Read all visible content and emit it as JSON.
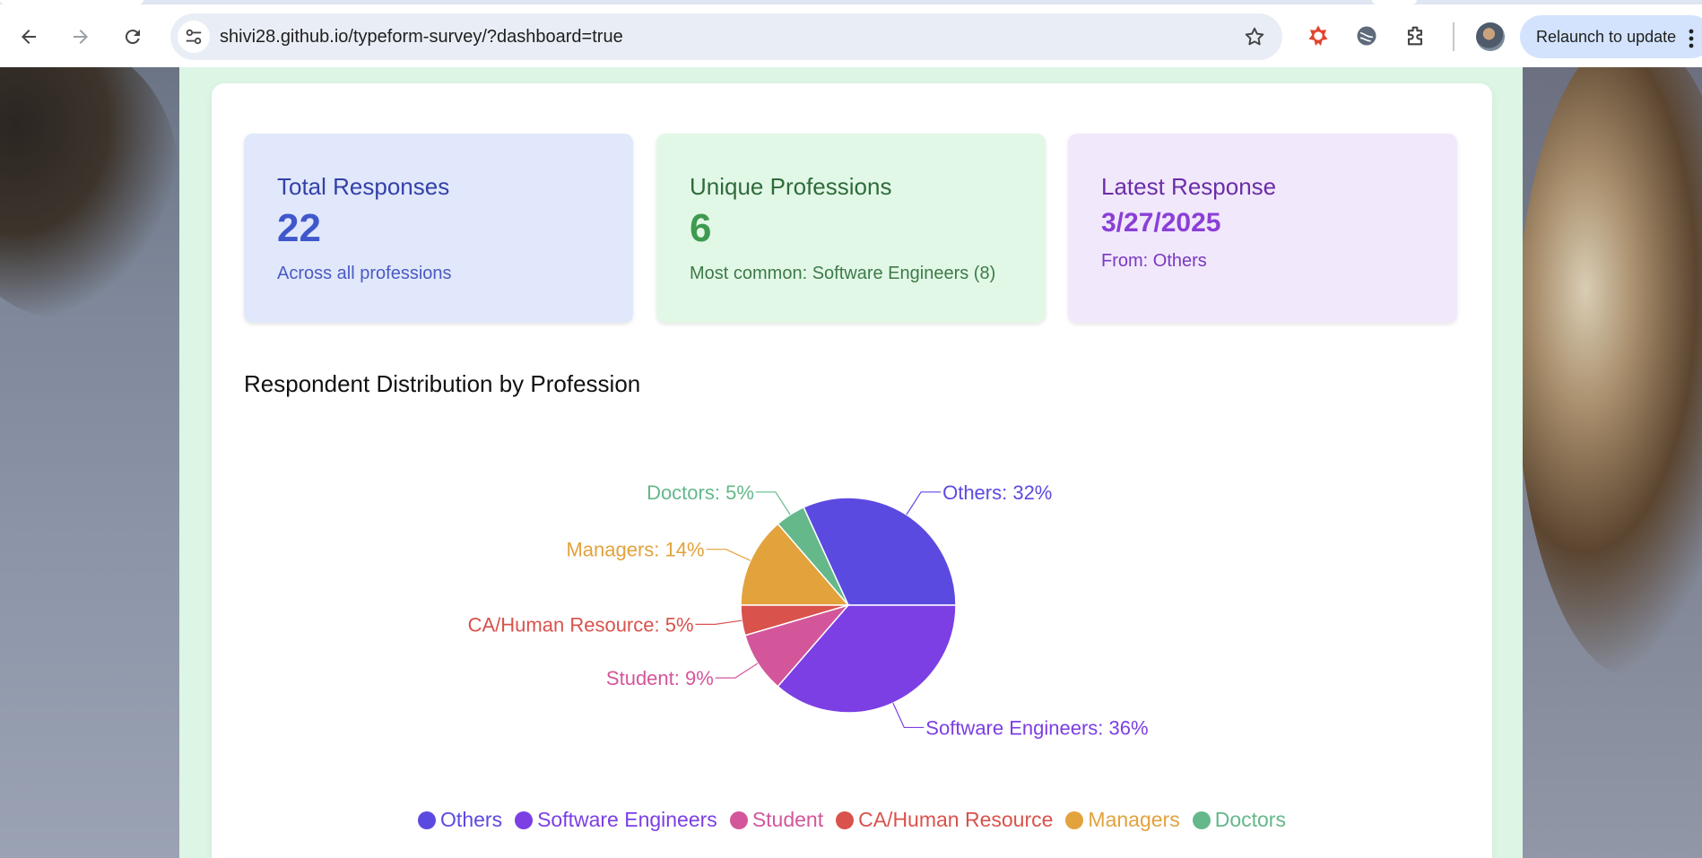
{
  "browser": {
    "url": "shivi28.github.io/typeform-survey/?dashboard=true",
    "relaunch_label": "Relaunch to update"
  },
  "stats": {
    "total": {
      "title": "Total Responses",
      "value": "22",
      "sub": "Across all professions"
    },
    "unique": {
      "title": "Unique Professions",
      "value": "6",
      "sub": "Most common: Software Engineers (8)"
    },
    "latest": {
      "title": "Latest Response",
      "value": "3/27/2025",
      "sub": "From: Others"
    }
  },
  "section_title": "Respondent Distribution by Profession",
  "chart_data": {
    "type": "pie",
    "title": "Respondent Distribution by Profession",
    "categories": [
      "Others",
      "Doctors",
      "Managers",
      "CA/Human Resource",
      "Student",
      "Software Engineers"
    ],
    "values": [
      7,
      1,
      3,
      1,
      2,
      8
    ],
    "labels": [
      "Others: 32%",
      "Doctors: 5%",
      "Managers: 14%",
      "CA/Human Resource: 5%",
      "Student: 9%",
      "Software Engineers: 36%"
    ],
    "colors": [
      "#5b4ae0",
      "#64b88a",
      "#e2a23c",
      "#d9524c",
      "#d4569a",
      "#7b3fe4"
    ],
    "legend": [
      "Others",
      "Software Engineers",
      "Student",
      "CA/Human Resource",
      "Managers",
      "Doctors"
    ],
    "legend_colors": [
      "#5b4ae0",
      "#7b3fe4",
      "#d4569a",
      "#d9524c",
      "#e2a23c",
      "#64b88a"
    ],
    "legend_position": "bottom"
  }
}
